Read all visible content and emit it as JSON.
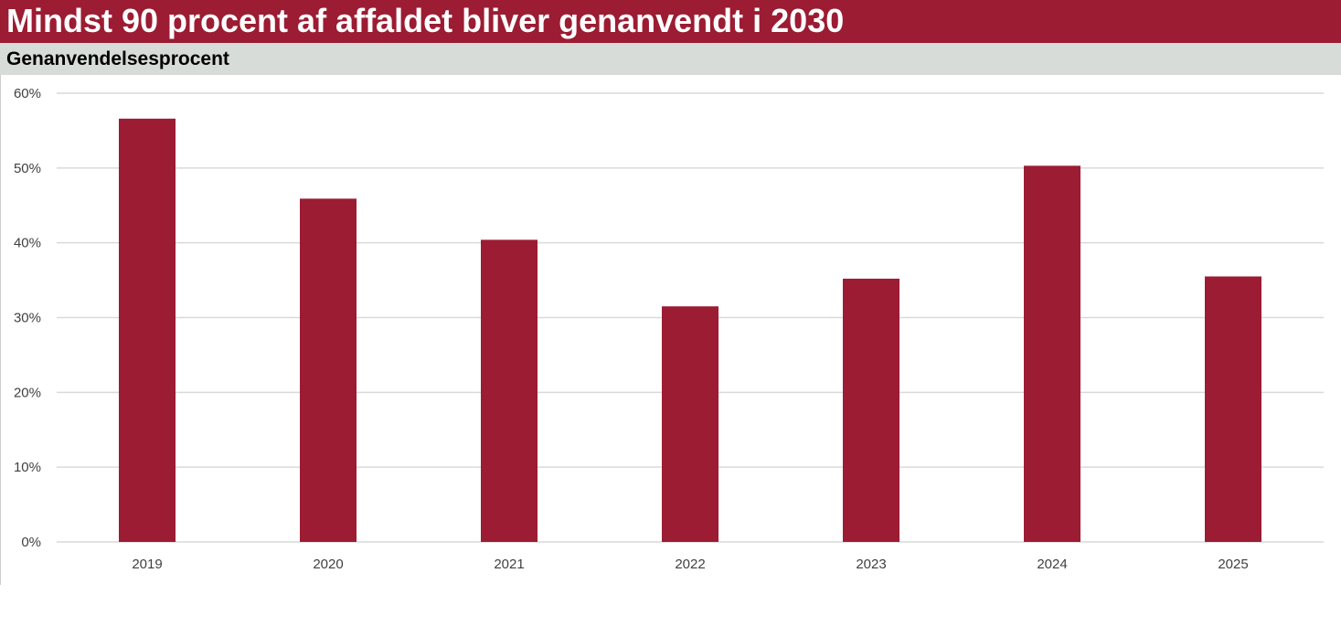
{
  "title": "Mindst 90 procent af affaldet bliver genanvendt i 2030",
  "subtitle": "Genanvendelsesprocent",
  "colors": {
    "title_bg": "#9b1c33",
    "subtitle_bg": "#d7dcd8",
    "bar": "#9b1c33",
    "grid": "#d9d9d9"
  },
  "chart_data": {
    "type": "bar",
    "title": "Genanvendelsesprocent",
    "xlabel": "",
    "ylabel": "",
    "categories": [
      "2019",
      "2020",
      "2021",
      "2022",
      "2023",
      "2024",
      "2025"
    ],
    "values": [
      56.6,
      45.9,
      40.4,
      31.5,
      35.2,
      50.3,
      35.5
    ],
    "ylim": [
      0,
      60
    ],
    "yticks": [
      0,
      10,
      20,
      30,
      40,
      50,
      60
    ],
    "ytick_labels": [
      "0%",
      "10%",
      "20%",
      "30%",
      "40%",
      "50%",
      "60%"
    ],
    "grid": true,
    "legend": "none"
  }
}
